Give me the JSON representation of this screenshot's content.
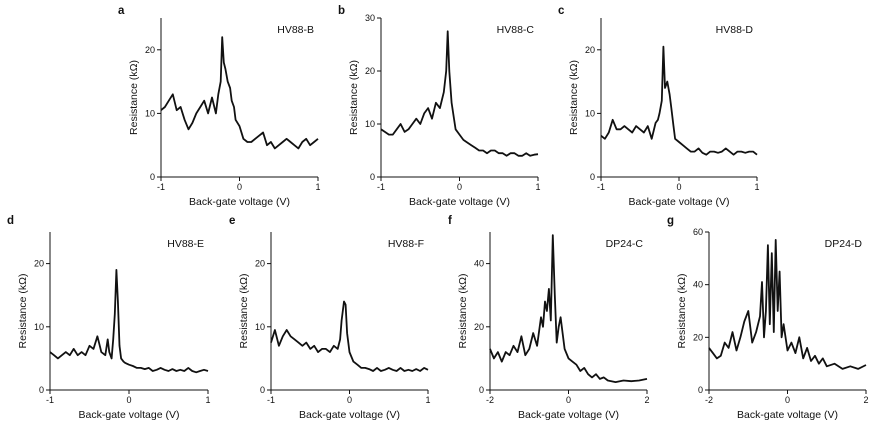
{
  "chart_data": [
    {
      "type": "line",
      "panel_label": "a",
      "sample": "HV88-B",
      "xlabel": "Back-gate voltage (V)",
      "ylabel": "Resistance (kΩ)",
      "xlim": [
        -1,
        1
      ],
      "ylim": [
        0,
        25
      ],
      "xticks": [
        -1,
        0,
        1
      ],
      "yticks": [
        0,
        10,
        20
      ],
      "x": [
        -1.0,
        -0.95,
        -0.9,
        -0.85,
        -0.8,
        -0.75,
        -0.7,
        -0.65,
        -0.6,
        -0.55,
        -0.5,
        -0.45,
        -0.4,
        -0.35,
        -0.3,
        -0.27,
        -0.24,
        -0.22,
        -0.2,
        -0.18,
        -0.15,
        -0.12,
        -0.1,
        -0.07,
        -0.05,
        0.0,
        0.05,
        0.1,
        0.15,
        0.2,
        0.25,
        0.3,
        0.35,
        0.4,
        0.45,
        0.5,
        0.55,
        0.6,
        0.65,
        0.7,
        0.75,
        0.8,
        0.85,
        0.9,
        0.95,
        1.0
      ],
      "y": [
        10.5,
        11,
        12,
        13,
        10.5,
        11,
        9,
        7.5,
        8.5,
        10,
        11,
        12,
        10,
        12.5,
        10,
        13,
        15,
        22,
        18,
        17,
        15,
        14,
        12,
        11,
        9,
        8,
        6,
        5.5,
        5.5,
        6,
        6.5,
        7,
        5,
        5.5,
        4.5,
        5,
        5.5,
        6,
        5.5,
        5,
        4.5,
        5.5,
        6,
        5,
        5.5,
        6
      ]
    },
    {
      "type": "line",
      "panel_label": "b",
      "sample": "HV88-C",
      "xlabel": "Back-gate voltage (V)",
      "ylabel": "Resistance (kΩ)",
      "xlim": [
        -1,
        1
      ],
      "ylim": [
        0,
        30
      ],
      "xticks": [
        -1,
        0,
        1
      ],
      "yticks": [
        0,
        10,
        20,
        30
      ],
      "x": [
        -1.0,
        -0.95,
        -0.9,
        -0.85,
        -0.8,
        -0.75,
        -0.7,
        -0.65,
        -0.6,
        -0.55,
        -0.5,
        -0.45,
        -0.4,
        -0.35,
        -0.3,
        -0.25,
        -0.2,
        -0.17,
        -0.15,
        -0.13,
        -0.1,
        -0.07,
        -0.05,
        0.0,
        0.05,
        0.1,
        0.15,
        0.2,
        0.25,
        0.3,
        0.35,
        0.4,
        0.45,
        0.5,
        0.55,
        0.6,
        0.65,
        0.7,
        0.75,
        0.8,
        0.85,
        0.9,
        0.95,
        1.0
      ],
      "y": [
        9,
        8.5,
        8,
        8,
        9,
        10,
        8.5,
        9,
        10,
        11,
        10,
        12,
        13,
        11,
        14,
        13,
        16,
        20,
        27.5,
        20,
        14,
        11,
        9,
        8,
        7,
        6.5,
        6,
        5.5,
        5,
        5,
        4.5,
        5,
        5,
        4.5,
        4.5,
        4,
        4.5,
        4.5,
        4,
        4,
        4.5,
        4,
        4.2,
        4.3
      ]
    },
    {
      "type": "line",
      "panel_label": "c",
      "sample": "HV88-D",
      "xlabel": "Back-gate voltage (V)",
      "ylabel": "Resistance (kΩ)",
      "xlim": [
        -1,
        1
      ],
      "ylim": [
        0,
        25
      ],
      "xticks": [
        -1,
        0,
        1
      ],
      "yticks": [
        0,
        10,
        20
      ],
      "x": [
        -1.0,
        -0.95,
        -0.9,
        -0.85,
        -0.8,
        -0.75,
        -0.7,
        -0.65,
        -0.6,
        -0.55,
        -0.5,
        -0.45,
        -0.4,
        -0.35,
        -0.3,
        -0.27,
        -0.25,
        -0.22,
        -0.2,
        -0.18,
        -0.15,
        -0.12,
        -0.1,
        -0.07,
        -0.05,
        0.0,
        0.05,
        0.1,
        0.15,
        0.2,
        0.25,
        0.3,
        0.35,
        0.4,
        0.45,
        0.5,
        0.55,
        0.6,
        0.65,
        0.7,
        0.75,
        0.8,
        0.85,
        0.9,
        0.95,
        1.0
      ],
      "y": [
        6.5,
        6,
        7,
        9,
        7.5,
        7.5,
        8,
        7.5,
        7,
        8,
        7.5,
        7,
        8,
        6,
        8.5,
        9,
        10,
        12,
        20.5,
        14,
        15,
        13,
        11,
        8,
        6,
        5.5,
        5,
        4.5,
        4,
        4,
        4.5,
        3.8,
        3.5,
        4,
        4,
        3.8,
        4,
        4.5,
        4,
        3.5,
        4,
        4,
        3.8,
        4,
        4,
        3.5
      ]
    },
    {
      "type": "line",
      "panel_label": "d",
      "sample": "HV88-E",
      "xlabel": "Back-gate voltage (V)",
      "ylabel": "Resistance (kΩ)",
      "xlim": [
        -1,
        1
      ],
      "ylim": [
        0,
        25
      ],
      "xticks": [
        -1,
        0,
        1
      ],
      "yticks": [
        0,
        10,
        20
      ],
      "x": [
        -1.0,
        -0.95,
        -0.9,
        -0.85,
        -0.8,
        -0.75,
        -0.7,
        -0.65,
        -0.6,
        -0.55,
        -0.5,
        -0.45,
        -0.4,
        -0.37,
        -0.35,
        -0.3,
        -0.27,
        -0.25,
        -0.22,
        -0.2,
        -0.18,
        -0.16,
        -0.14,
        -0.12,
        -0.1,
        -0.07,
        -0.05,
        0.0,
        0.05,
        0.1,
        0.15,
        0.2,
        0.25,
        0.3,
        0.35,
        0.4,
        0.45,
        0.5,
        0.55,
        0.6,
        0.65,
        0.7,
        0.75,
        0.8,
        0.85,
        0.9,
        0.95,
        1.0
      ],
      "y": [
        6,
        5.5,
        5,
        5.5,
        6,
        5.5,
        6.5,
        5.5,
        6,
        5.5,
        7,
        6.5,
        8.5,
        7,
        6,
        5.5,
        8,
        6,
        5,
        8,
        12,
        19,
        14,
        7,
        5,
        4.5,
        4.3,
        4,
        3.8,
        3.5,
        3.5,
        3.3,
        3.5,
        3,
        3.2,
        3.5,
        3.2,
        3,
        3.3,
        3,
        3.2,
        3,
        3.5,
        3,
        2.8,
        3,
        3.2,
        3
      ]
    },
    {
      "type": "line",
      "panel_label": "e",
      "sample": "HV88-F",
      "xlabel": "Back-gate voltage (V)",
      "ylabel": "Resistance (kΩ)",
      "xlim": [
        -1,
        1
      ],
      "ylim": [
        0,
        25
      ],
      "xticks": [
        -1,
        0,
        1
      ],
      "yticks": [
        0,
        10,
        20
      ],
      "x": [
        -1.0,
        -0.95,
        -0.9,
        -0.85,
        -0.8,
        -0.75,
        -0.7,
        -0.65,
        -0.6,
        -0.55,
        -0.5,
        -0.45,
        -0.4,
        -0.35,
        -0.3,
        -0.25,
        -0.2,
        -0.15,
        -0.12,
        -0.1,
        -0.07,
        -0.05,
        -0.03,
        0.0,
        0.05,
        0.1,
        0.15,
        0.2,
        0.25,
        0.3,
        0.35,
        0.4,
        0.45,
        0.5,
        0.55,
        0.6,
        0.65,
        0.7,
        0.75,
        0.8,
        0.85,
        0.9,
        0.95,
        1.0
      ],
      "y": [
        7.5,
        9.5,
        7,
        8.5,
        9.5,
        8.5,
        8,
        7.5,
        7,
        7.5,
        6.5,
        7,
        6,
        6.5,
        6.5,
        6,
        7,
        6.5,
        8,
        11,
        14,
        13.5,
        9,
        6,
        4.5,
        4,
        3.5,
        3.5,
        3.3,
        3,
        3.5,
        3,
        3.2,
        3.5,
        3.2,
        3,
        3.5,
        3,
        3.2,
        3,
        3.3,
        3,
        3.5,
        3.2
      ]
    },
    {
      "type": "line",
      "panel_label": "f",
      "sample": "DP24-C",
      "xlabel": "Back-gate voltage (V)",
      "ylabel": "Resistance (kΩ)",
      "xlim": [
        -2,
        2
      ],
      "ylim": [
        0,
        50
      ],
      "xticks": [
        -2,
        0,
        2
      ],
      "yticks": [
        0,
        20,
        40
      ],
      "x": [
        -2.0,
        -1.9,
        -1.8,
        -1.7,
        -1.6,
        -1.5,
        -1.4,
        -1.3,
        -1.2,
        -1.1,
        -1.0,
        -0.9,
        -0.8,
        -0.7,
        -0.65,
        -0.6,
        -0.55,
        -0.5,
        -0.45,
        -0.4,
        -0.35,
        -0.3,
        -0.25,
        -0.2,
        -0.15,
        -0.1,
        0.0,
        0.1,
        0.2,
        0.3,
        0.4,
        0.5,
        0.6,
        0.7,
        0.8,
        0.9,
        1.0,
        1.2,
        1.4,
        1.6,
        1.8,
        2.0
      ],
      "y": [
        13,
        10,
        12,
        9,
        12,
        11,
        14,
        12,
        17,
        11,
        13,
        18,
        14,
        23,
        20,
        28,
        25,
        32,
        22,
        49,
        30,
        15,
        20,
        23,
        18,
        13,
        10,
        9,
        8,
        6,
        7,
        5,
        4,
        5,
        3.5,
        4,
        3,
        2.5,
        3,
        2.8,
        3,
        3.5
      ]
    },
    {
      "type": "line",
      "panel_label": "g",
      "sample": "DP24-D",
      "xlabel": "Back-gate voltage (V)",
      "ylabel": "Resistance (kΩ)",
      "xlim": [
        -2,
        2
      ],
      "ylim": [
        0,
        60
      ],
      "xticks": [
        -2,
        0,
        2
      ],
      "yticks": [
        0,
        20,
        40,
        60
      ],
      "x": [
        -2.0,
        -1.9,
        -1.8,
        -1.7,
        -1.6,
        -1.5,
        -1.4,
        -1.3,
        -1.2,
        -1.1,
        -1.0,
        -0.9,
        -0.8,
        -0.7,
        -0.65,
        -0.6,
        -0.55,
        -0.5,
        -0.45,
        -0.4,
        -0.35,
        -0.3,
        -0.25,
        -0.2,
        -0.15,
        -0.1,
        0.0,
        0.1,
        0.2,
        0.3,
        0.4,
        0.5,
        0.6,
        0.7,
        0.8,
        0.9,
        1.0,
        1.2,
        1.4,
        1.6,
        1.8,
        2.0
      ],
      "y": [
        16,
        14,
        12,
        13,
        18,
        16,
        22,
        15,
        20,
        26,
        30,
        18,
        22,
        28,
        41,
        20,
        30,
        55,
        25,
        52,
        22,
        57,
        30,
        45,
        20,
        25,
        15,
        18,
        14,
        20,
        12,
        16,
        11,
        13,
        10,
        12,
        9,
        10,
        8,
        9,
        8,
        9.5
      ]
    }
  ]
}
